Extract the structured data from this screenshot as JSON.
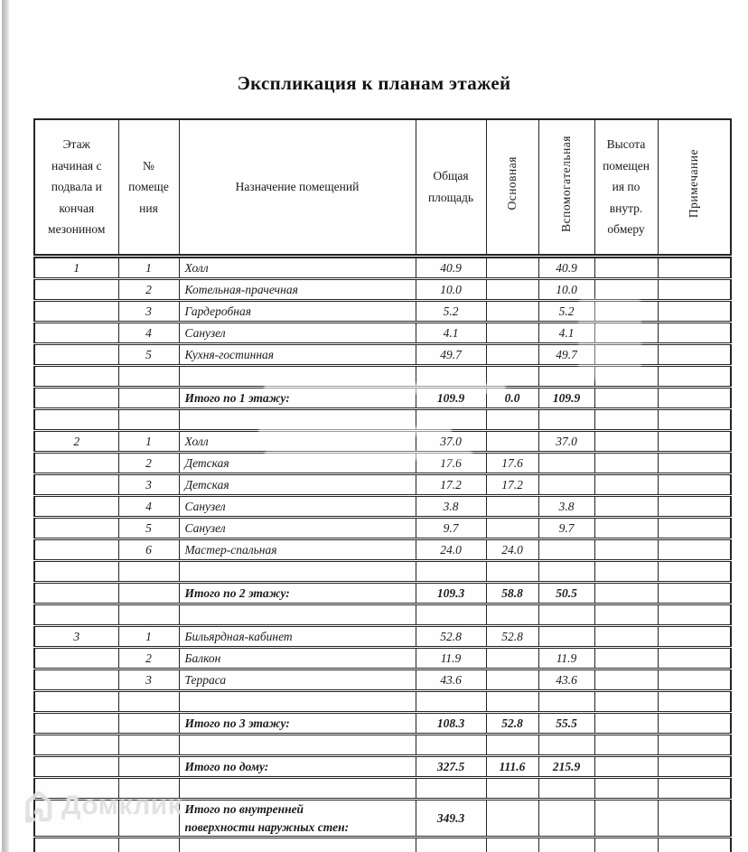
{
  "page": {
    "title": "Экспликация к планам этажей"
  },
  "watermark": {
    "brand": "Домклик",
    "icon": "house-icon",
    "color": "#dedede"
  },
  "table": {
    "headers": {
      "floor": "Этаж\nначиная с\nподвала и\nкончая\nмезонином",
      "num": "№\nпомеще\nния",
      "name": "Назначение помещений",
      "total": "Общая\nплощадь",
      "main": "Основная",
      "aux": "Вспомогательная",
      "height": "Высота\nпомещен\nия по\nвнутр.\nобмеру",
      "note": "Примечание"
    },
    "rows": [
      {
        "type": "data",
        "floor": "1",
        "num": "1",
        "name": "Холл",
        "total": "40.9",
        "main": "",
        "aux": "40.9",
        "height": "",
        "note": ""
      },
      {
        "type": "data",
        "floor": "",
        "num": "2",
        "name": "Котельная-прачечная",
        "total": "10.0",
        "main": "",
        "aux": "10.0",
        "height": "",
        "note": ""
      },
      {
        "type": "data",
        "floor": "",
        "num": "3",
        "name": "Гардеробная",
        "total": "5.2",
        "main": "",
        "aux": "5.2",
        "height": "",
        "note": ""
      },
      {
        "type": "data",
        "floor": "",
        "num": "4",
        "name": "Санузел",
        "total": "4.1",
        "main": "",
        "aux": "4.1",
        "height": "",
        "note": ""
      },
      {
        "type": "data",
        "floor": "",
        "num": "5",
        "name": "Кухня-гостинная",
        "total": "49.7",
        "main": "",
        "aux": "49.7",
        "height": "",
        "note": ""
      },
      {
        "type": "empty"
      },
      {
        "type": "total",
        "floor": "",
        "num": "",
        "name": "Итого по 1 этажу:",
        "total": "109.9",
        "main": "0.0",
        "aux": "109.9",
        "height": "",
        "note": ""
      },
      {
        "type": "empty"
      },
      {
        "type": "data",
        "floor": "2",
        "num": "1",
        "name": "Холл",
        "total": "37.0",
        "main": "",
        "aux": "37.0",
        "height": "",
        "note": ""
      },
      {
        "type": "data",
        "floor": "",
        "num": "2",
        "name": "Детская",
        "total": "17.6",
        "main": "17.6",
        "aux": "",
        "height": "",
        "note": ""
      },
      {
        "type": "data",
        "floor": "",
        "num": "3",
        "name": "Детская",
        "total": "17.2",
        "main": "17.2",
        "aux": "",
        "height": "",
        "note": ""
      },
      {
        "type": "data",
        "floor": "",
        "num": "4",
        "name": "Санузел",
        "total": "3.8",
        "main": "",
        "aux": "3.8",
        "height": "",
        "note": ""
      },
      {
        "type": "data",
        "floor": "",
        "num": "5",
        "name": "Санузел",
        "total": "9.7",
        "main": "",
        "aux": "9.7",
        "height": "",
        "note": ""
      },
      {
        "type": "data",
        "floor": "",
        "num": "6",
        "name": "Мастер-спальная",
        "total": "24.0",
        "main": "24.0",
        "aux": "",
        "height": "",
        "note": ""
      },
      {
        "type": "empty"
      },
      {
        "type": "total",
        "floor": "",
        "num": "",
        "name": "Итого по 2 этажу:",
        "total": "109.3",
        "main": "58.8",
        "aux": "50.5",
        "height": "",
        "note": ""
      },
      {
        "type": "empty"
      },
      {
        "type": "data",
        "floor": "3",
        "num": "1",
        "name": "Бильярдная-кабинет",
        "total": "52.8",
        "main": "52.8",
        "aux": "",
        "height": "",
        "note": ""
      },
      {
        "type": "data",
        "floor": "",
        "num": "2",
        "name": "Балкон",
        "total": "11.9",
        "main": "",
        "aux": "11.9",
        "height": "",
        "note": ""
      },
      {
        "type": "data",
        "floor": "",
        "num": "3",
        "name": "Терраса",
        "total": "43.6",
        "main": "",
        "aux": "43.6",
        "height": "",
        "note": ""
      },
      {
        "type": "empty"
      },
      {
        "type": "total",
        "floor": "",
        "num": "",
        "name": "Итого по 3 этажу:",
        "total": "108.3",
        "main": "52.8",
        "aux": "55.5",
        "height": "",
        "note": ""
      },
      {
        "type": "empty"
      },
      {
        "type": "total",
        "floor": "",
        "num": "",
        "name": "Итого по дому:",
        "total": "327.5",
        "main": "111.6",
        "aux": "215.9",
        "height": "",
        "note": ""
      },
      {
        "type": "empty"
      },
      {
        "type": "total-tall",
        "floor": "",
        "num": "",
        "name": "Итого по внутренней\nповерхности наружных стен:",
        "total": "349.3",
        "main": "",
        "aux": "",
        "height": "",
        "note": ""
      },
      {
        "type": "empty"
      }
    ]
  }
}
